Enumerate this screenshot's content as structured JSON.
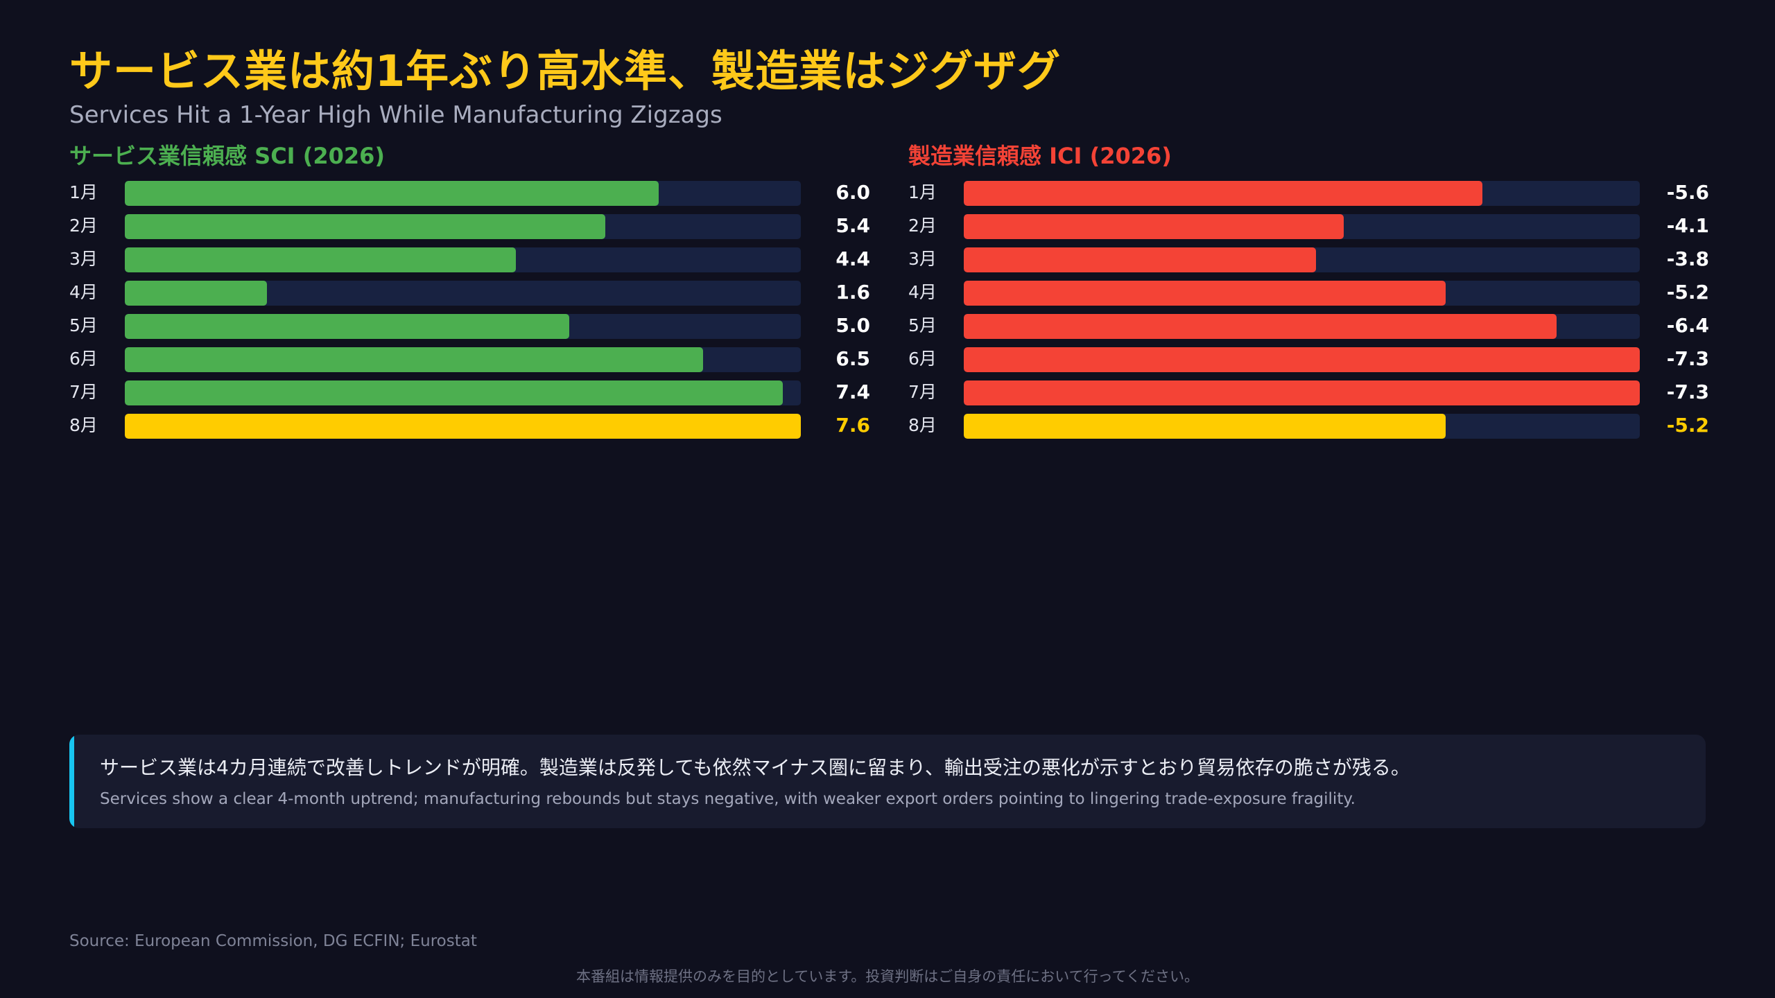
{
  "title": "サービス業は約1年ぶり高水準、製造業はジグザグ",
  "subtitle": "Services Hit a 1-Year High While Manufacturing Zigzags",
  "colors": {
    "services": "#4caf50",
    "manufacturing": "#f44336",
    "highlight": "#ffcc00",
    "track": "#182241",
    "accent_bar": "#18c5f0"
  },
  "chart_data": [
    {
      "type": "bar",
      "orientation": "horizontal",
      "title": "サービス業信頼感 SCI (2026)",
      "categories": [
        "1月",
        "2月",
        "3月",
        "4月",
        "5月",
        "6月",
        "7月",
        "8月"
      ],
      "values": [
        6.0,
        5.4,
        4.4,
        1.6,
        5.0,
        6.5,
        7.4,
        7.6
      ],
      "value_labels": [
        "6.0",
        "5.4",
        "4.4",
        "1.6",
        "5.0",
        "6.5",
        "7.4",
        "7.6"
      ],
      "bar_scale_max_abs": 7.6,
      "highlight_index": 7
    },
    {
      "type": "bar",
      "orientation": "horizontal",
      "title": "製造業信頼感 ICI (2026)",
      "categories": [
        "1月",
        "2月",
        "3月",
        "4月",
        "5月",
        "6月",
        "7月",
        "8月"
      ],
      "values": [
        -5.6,
        -4.1,
        -3.8,
        -5.2,
        -6.4,
        -7.3,
        -7.3,
        -5.2
      ],
      "value_labels": [
        "-5.6",
        "-4.1",
        "-3.8",
        "-5.2",
        "-6.4",
        "-7.3",
        "-7.3",
        "-5.2"
      ],
      "bar_scale_max_abs": 7.3,
      "highlight_index": 7
    }
  ],
  "note": {
    "main": "サービス業は4カ月連続で改善しトレンドが明確。製造業は反発しても依然マイナス圏に留まり、輸出受注の悪化が示すとおり貿易依存の脆さが残る。",
    "sub": "Services show a clear 4-month uptrend; manufacturing rebounds but stays negative, with weaker export orders pointing to lingering trade-exposure fragility."
  },
  "source": "Source: European Commission, DG ECFIN; Eurostat",
  "disclaimer": "本番組は情報提供のみを目的としています。投資判断はご自身の責任において行ってください。"
}
